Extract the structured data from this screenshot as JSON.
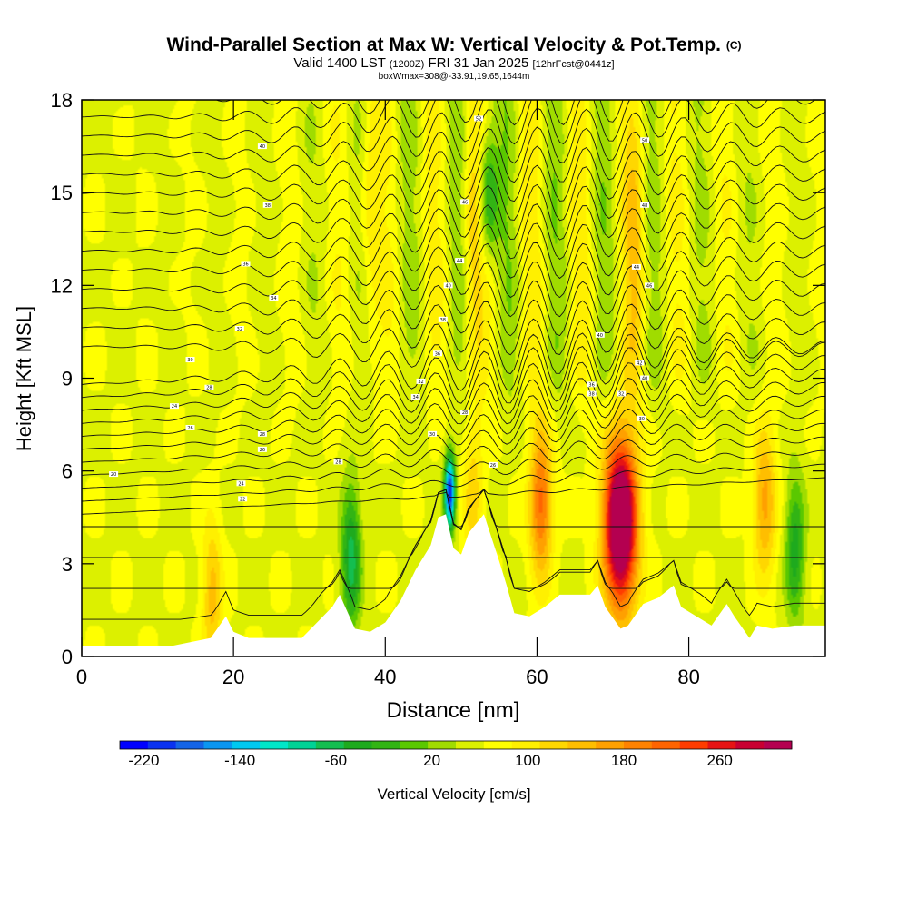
{
  "header": {
    "title": "Wind-Parallel Section at Max W: Vertical Velocity & Pot.Temp.",
    "copyright": "(C)",
    "valid_prefix": "Valid 1400 LST",
    "valid_utc": "(1200Z)",
    "valid_date": "FRI 31 Jan 2025",
    "forecast": "[12hrFcst@0441z]",
    "box_info": "boxWmax=308@-33.91,19.65,1644m"
  },
  "chart_data": {
    "type": "heatmap",
    "title": "Wind-Parallel Section at Max W: Vertical Velocity & Pot.Temp.",
    "xlabel": "Distance [nm]",
    "ylabel": "Height [Kft MSL]",
    "xlim": [
      0,
      98
    ],
    "ylim": [
      0,
      18
    ],
    "xticks": [
      0,
      20,
      40,
      60,
      80
    ],
    "yticks": [
      0,
      3,
      6,
      9,
      12,
      15,
      18
    ],
    "colorbar": {
      "label": "Vertical Velocity [cm/s]",
      "min": -240,
      "max": 320,
      "step": 20,
      "tick_labels": [
        "-220",
        "-140",
        "-60",
        "20",
        "100",
        "180",
        "260"
      ],
      "colors": [
        "#0000ff",
        "#0a32f0",
        "#1464e6",
        "#0a96f0",
        "#00c8f0",
        "#00e6c8",
        "#00d296",
        "#14be50",
        "#1eaa1e",
        "#32b414",
        "#5ac800",
        "#a0dc00",
        "#dcf000",
        "#ffff00",
        "#fff000",
        "#ffd700",
        "#ffbe00",
        "#ffa000",
        "#ff8200",
        "#ff6400",
        "#ff3c00",
        "#e61414",
        "#c80032",
        "#b40050"
      ]
    },
    "terrain_kft": [
      [
        0,
        0.35
      ],
      [
        12,
        0.35
      ],
      [
        17,
        0.6
      ],
      [
        19,
        1.3
      ],
      [
        20,
        0.8
      ],
      [
        22,
        0.6
      ],
      [
        29,
        0.6
      ],
      [
        33,
        1.6
      ],
      [
        34,
        2.0
      ],
      [
        36,
        0.9
      ],
      [
        38,
        0.8
      ],
      [
        40,
        1.1
      ],
      [
        42,
        1.8
      ],
      [
        44,
        2.8
      ],
      [
        46,
        3.6
      ],
      [
        47,
        4.5
      ],
      [
        48,
        4.6
      ],
      [
        49,
        3.5
      ],
      [
        50,
        3.3
      ],
      [
        51,
        4.0
      ],
      [
        53,
        4.6
      ],
      [
        55,
        3.1
      ],
      [
        56,
        2.3
      ],
      [
        57,
        1.4
      ],
      [
        59,
        1.3
      ],
      [
        61,
        1.6
      ],
      [
        63,
        2.0
      ],
      [
        67,
        2.0
      ],
      [
        68,
        2.3
      ],
      [
        69,
        1.6
      ],
      [
        71,
        0.9
      ],
      [
        72,
        1.0
      ],
      [
        74,
        1.7
      ],
      [
        76,
        1.9
      ],
      [
        78,
        2.3
      ],
      [
        79,
        1.6
      ],
      [
        81,
        1.3
      ],
      [
        83,
        1.0
      ],
      [
        85,
        1.7
      ],
      [
        86,
        1.3
      ],
      [
        88,
        0.6
      ],
      [
        89,
        1.0
      ],
      [
        91,
        0.9
      ],
      [
        94,
        1.0
      ],
      [
        98,
        1.0
      ]
    ],
    "updrafts": [
      {
        "center_nm": 71,
        "center_kft": 4.3,
        "peak_cms": 308
      },
      {
        "center_nm": 60.5,
        "center_kft": 5.0,
        "peak_cms": 150
      },
      {
        "center_nm": 90,
        "center_kft": 5.0,
        "peak_cms": 110
      },
      {
        "center_nm": 17.2,
        "center_kft": 2.0,
        "peak_cms": 90
      },
      {
        "center_nm": 51.6,
        "center_kft": 5.2,
        "peak_cms": 70
      },
      {
        "center_nm": 38,
        "center_kft": 14.5,
        "peak_cms": 60
      },
      {
        "center_nm": 51.5,
        "center_kft": 13.5,
        "peak_cms": 65
      },
      {
        "center_nm": 73,
        "center_kft": 13.5,
        "peak_cms": 70
      }
    ],
    "downdrafts": [
      {
        "center_nm": 48.5,
        "center_kft": 5.3,
        "peak_cms": -220
      },
      {
        "center_nm": 35.5,
        "center_kft": 3.2,
        "peak_cms": -90
      },
      {
        "center_nm": 53.5,
        "center_kft": 15.0,
        "peak_cms": -80
      },
      {
        "center_nm": 94,
        "center_kft": 3.5,
        "peak_cms": -70
      }
    ],
    "contour_labels": [
      {
        "x_nm": 4.2,
        "y_kft": 5.9,
        "text": "20"
      },
      {
        "x_nm": 12.2,
        "y_kft": 8.1,
        "text": "24"
      },
      {
        "x_nm": 14.3,
        "y_kft": 7.4,
        "text": "26"
      },
      {
        "x_nm": 16.8,
        "y_kft": 8.7,
        "text": "28"
      },
      {
        "x_nm": 14.3,
        "y_kft": 9.6,
        "text": "30"
      },
      {
        "x_nm": 21.2,
        "y_kft": 5.1,
        "text": "22"
      },
      {
        "x_nm": 21,
        "y_kft": 5.6,
        "text": "24"
      },
      {
        "x_nm": 23.8,
        "y_kft": 6.7,
        "text": "26"
      },
      {
        "x_nm": 23.8,
        "y_kft": 7.2,
        "text": "28"
      },
      {
        "x_nm": 20.8,
        "y_kft": 10.6,
        "text": "32"
      },
      {
        "x_nm": 21.6,
        "y_kft": 12.7,
        "text": "36"
      },
      {
        "x_nm": 25.3,
        "y_kft": 11.6,
        "text": "34"
      },
      {
        "x_nm": 24.5,
        "y_kft": 14.6,
        "text": "38"
      },
      {
        "x_nm": 23.8,
        "y_kft": 16.5,
        "text": "40"
      },
      {
        "x_nm": 33.8,
        "y_kft": 6.3,
        "text": "28"
      },
      {
        "x_nm": 44,
        "y_kft": 8.4,
        "text": "34"
      },
      {
        "x_nm": 44.7,
        "y_kft": 8.9,
        "text": "32"
      },
      {
        "x_nm": 46.2,
        "y_kft": 7.2,
        "text": "30"
      },
      {
        "x_nm": 46.9,
        "y_kft": 9.8,
        "text": "36"
      },
      {
        "x_nm": 47.6,
        "y_kft": 10.9,
        "text": "38"
      },
      {
        "x_nm": 48.3,
        "y_kft": 12.0,
        "text": "40"
      },
      {
        "x_nm": 49.8,
        "y_kft": 12.8,
        "text": "44"
      },
      {
        "x_nm": 50.5,
        "y_kft": 14.7,
        "text": "46"
      },
      {
        "x_nm": 52.3,
        "y_kft": 17.4,
        "text": "52"
      },
      {
        "x_nm": 50.5,
        "y_kft": 7.9,
        "text": "28"
      },
      {
        "x_nm": 54.2,
        "y_kft": 6.2,
        "text": "26"
      },
      {
        "x_nm": 67.2,
        "y_kft": 8.8,
        "text": "36"
      },
      {
        "x_nm": 67.2,
        "y_kft": 8.5,
        "text": "38"
      },
      {
        "x_nm": 68.3,
        "y_kft": 10.4,
        "text": "40"
      },
      {
        "x_nm": 71.1,
        "y_kft": 8.5,
        "text": "32"
      },
      {
        "x_nm": 73.1,
        "y_kft": 12.6,
        "text": "44"
      },
      {
        "x_nm": 74.8,
        "y_kft": 12.0,
        "text": "46"
      },
      {
        "x_nm": 74.2,
        "y_kft": 14.6,
        "text": "48"
      },
      {
        "x_nm": 74.2,
        "y_kft": 16.7,
        "text": "50"
      },
      {
        "x_nm": 73.5,
        "y_kft": 9.5,
        "text": "42"
      },
      {
        "x_nm": 74.2,
        "y_kft": 9.0,
        "text": "40"
      },
      {
        "x_nm": 73.8,
        "y_kft": 7.7,
        "text": "30"
      }
    ]
  }
}
